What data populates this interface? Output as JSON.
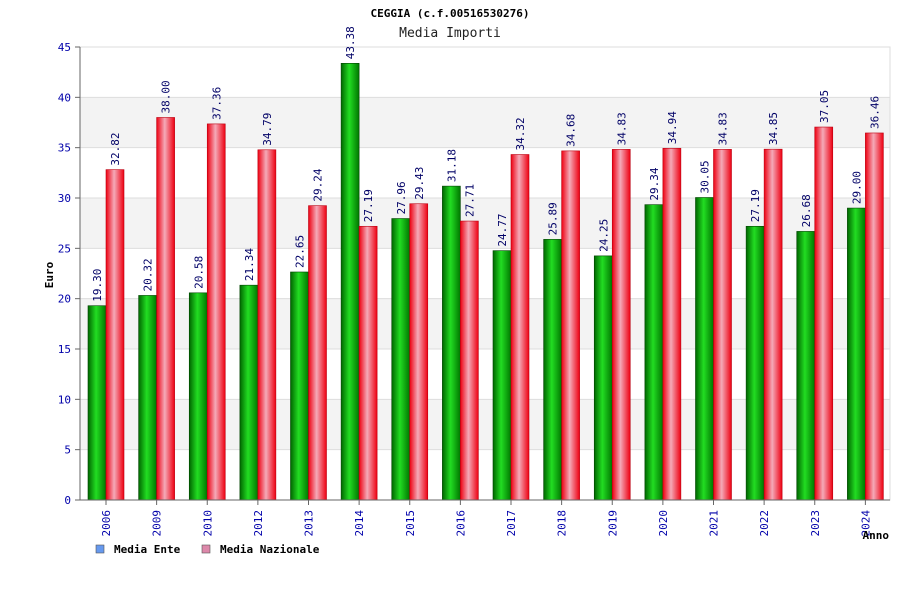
{
  "chart_data": {
    "type": "bar",
    "title": "CEGGIA (c.f.00516530276)",
    "subtitle": "Media Importi",
    "xlabel": "Anno",
    "ylabel": "Euro",
    "ylim": [
      0,
      45
    ],
    "yticks": [
      0,
      5,
      10,
      15,
      20,
      25,
      30,
      35,
      40,
      45
    ],
    "grid": true,
    "legend_position": "bottom-left",
    "categories": [
      "2006",
      "2009",
      "2010",
      "2012",
      "2013",
      "2014",
      "2015",
      "2016",
      "2017",
      "2018",
      "2019",
      "2020",
      "2021",
      "2022",
      "2023",
      "2024"
    ],
    "series": [
      {
        "name": "Media Ente",
        "color": "#00aa00",
        "legend_color": "#6699ee",
        "values": [
          19.3,
          20.32,
          20.58,
          21.34,
          22.65,
          43.38,
          27.96,
          31.18,
          24.77,
          25.89,
          24.25,
          29.34,
          30.05,
          27.19,
          26.68,
          29.0
        ],
        "labels": [
          "19.30",
          "20.32",
          "20.58",
          "21.34",
          "22.65",
          "43.38",
          "27.96",
          "31.18",
          "24.77",
          "25.89",
          "24.25",
          "29.34",
          "30.05",
          "27.19",
          "26.68",
          "29.00"
        ]
      },
      {
        "name": "Media Nazionale",
        "color": "#ee1122",
        "legend_color": "#dd88aa",
        "values": [
          32.82,
          38.0,
          37.36,
          34.79,
          29.24,
          27.19,
          29.43,
          27.71,
          34.32,
          34.68,
          34.83,
          34.94,
          34.83,
          34.85,
          37.05,
          36.46
        ],
        "labels": [
          "32.82",
          "38.00",
          "37.36",
          "34.79",
          "29.24",
          "27.19",
          "29.43",
          "27.71",
          "34.32",
          "34.68",
          "34.83",
          "34.94",
          "34.83",
          "34.85",
          "37.05",
          "36.46"
        ]
      }
    ]
  }
}
